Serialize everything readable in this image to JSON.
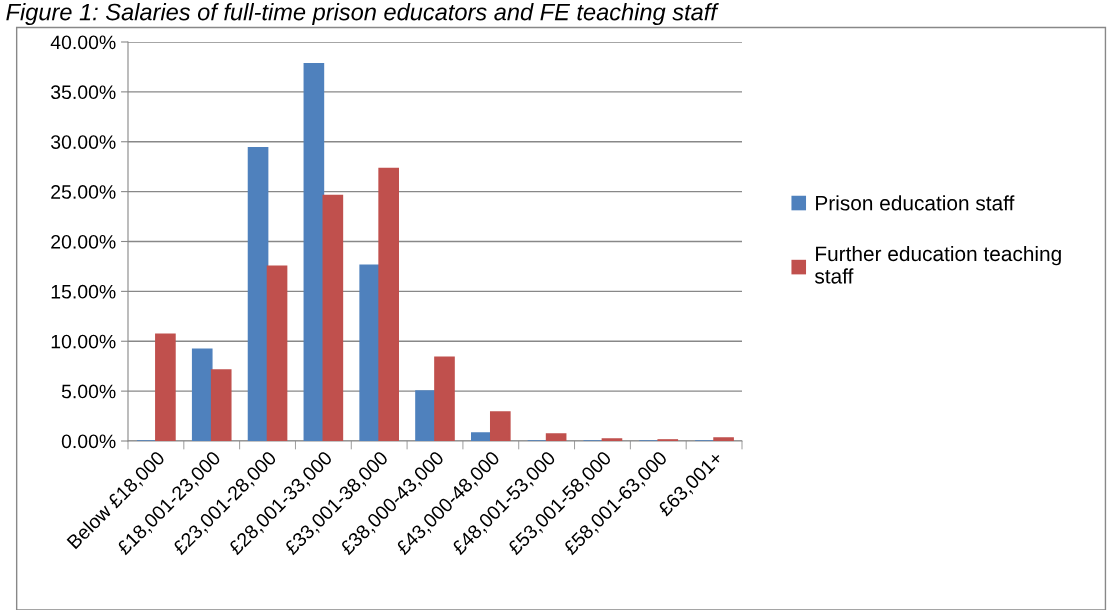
{
  "chart_data": {
    "type": "bar",
    "title": "Figure 1: Salaries of full-time prison educators and FE teaching staff",
    "categories": [
      "Below £18,000",
      "£18,001-23,000",
      "£23,001-28,000",
      "£28,001-33,000",
      "£33,001-38,000",
      "£38,000-43,000",
      "£43,000-48,000",
      "£48,001-53,000",
      "£53,001-58,000",
      "£58,001-63,000",
      "£63,001+"
    ],
    "series": [
      {
        "name": "Prison education staff",
        "color": "#4f81bd",
        "values": [
          0,
          9.2,
          29.4,
          37.8,
          17.6,
          5.0,
          0.8,
          0,
          0,
          0,
          0
        ]
      },
      {
        "name": "Further education teaching staff",
        "color": "#c0504d",
        "values": [
          10.7,
          7.1,
          17.5,
          24.6,
          27.3,
          8.4,
          2.9,
          0.7,
          0.2,
          0.1,
          0.3
        ]
      }
    ],
    "ylim": [
      0,
      40
    ],
    "yticks": [
      {
        "value": 0,
        "label": "0.00%"
      },
      {
        "value": 5,
        "label": "5.00%"
      },
      {
        "value": 10,
        "label": "10.00%"
      },
      {
        "value": 15,
        "label": "15.00%"
      },
      {
        "value": 20,
        "label": "20.00%"
      },
      {
        "value": 25,
        "label": "25.00%"
      },
      {
        "value": 30,
        "label": "30.00%"
      },
      {
        "value": 35,
        "label": "35.00%"
      },
      {
        "value": 40,
        "label": "40.00%"
      }
    ],
    "grid": "y",
    "legend": "right"
  }
}
